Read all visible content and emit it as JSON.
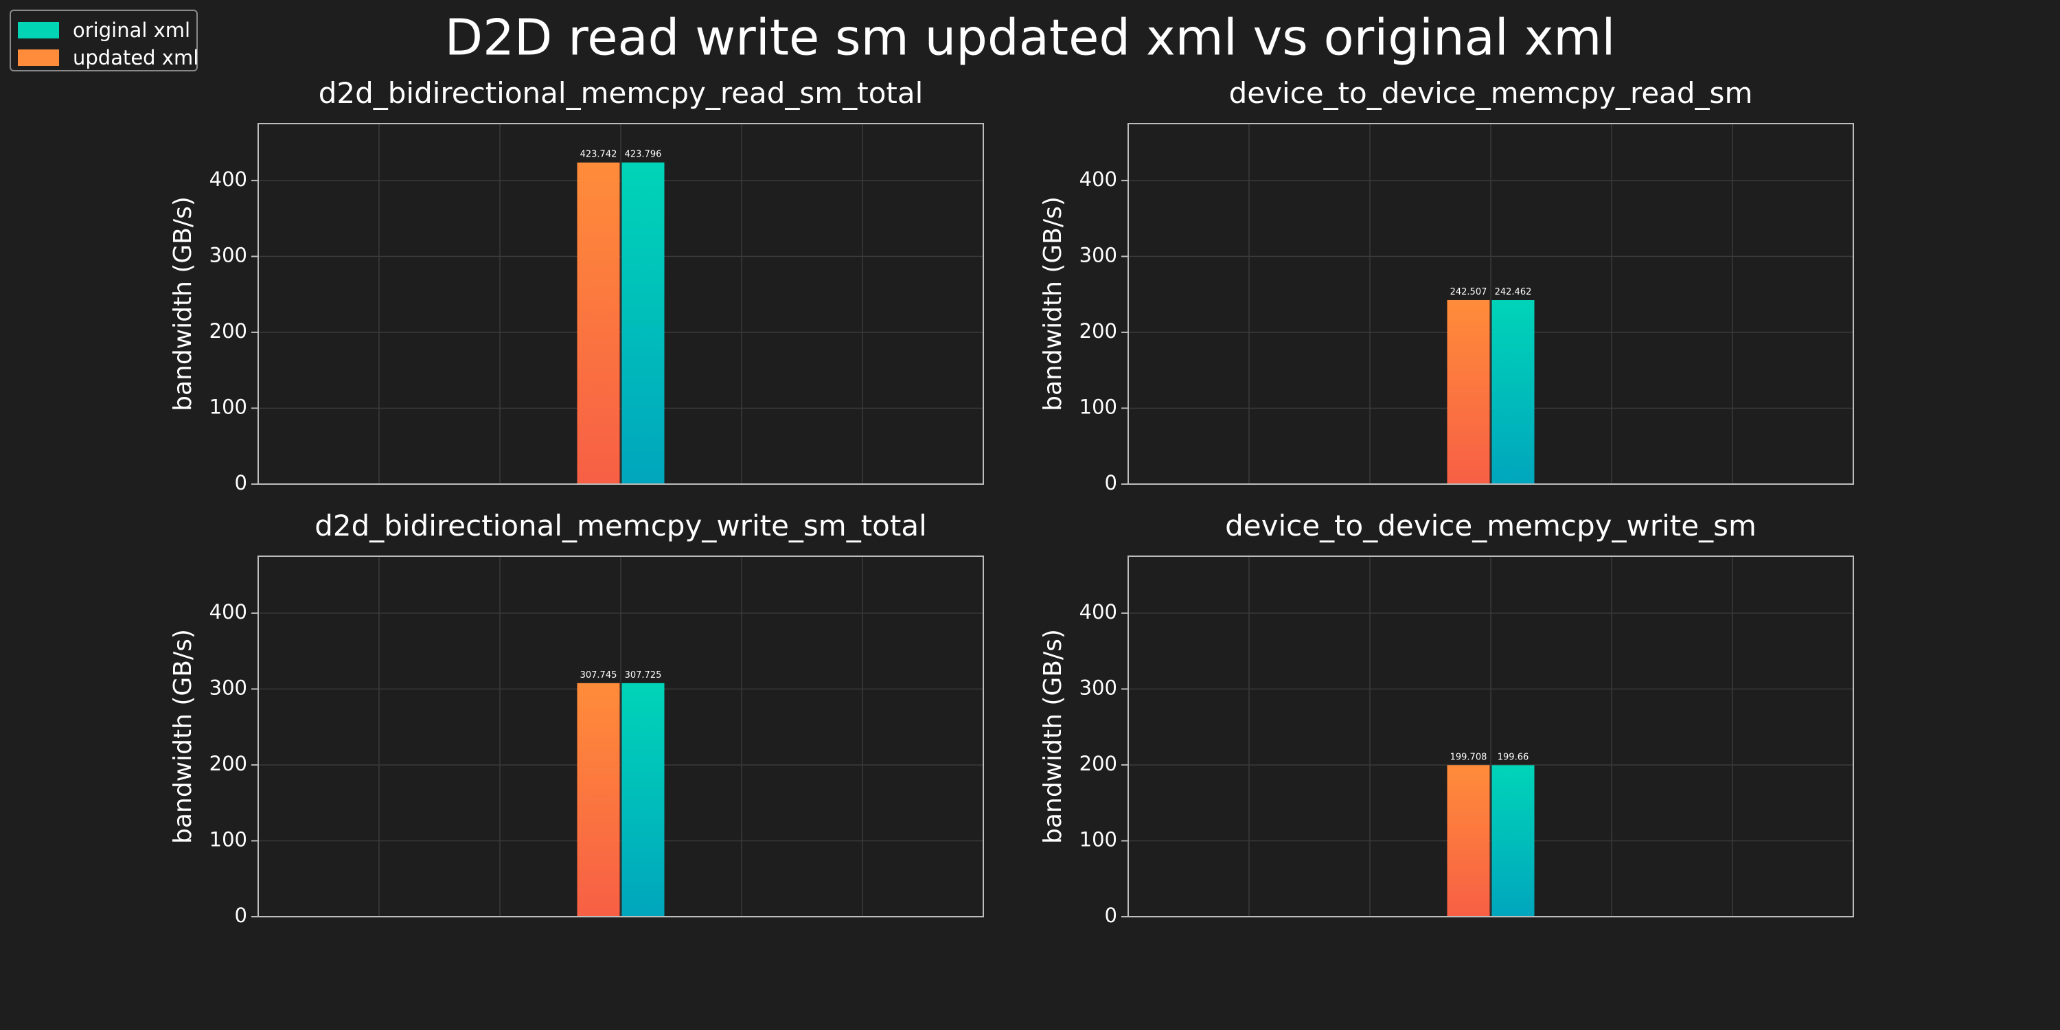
{
  "title": "D2D read write sm updated xml vs original xml",
  "legend": {
    "items": [
      {
        "label": "original xml",
        "color": "#00d4b4"
      },
      {
        "label": "updated xml",
        "color": "#ff8c3a"
      }
    ]
  },
  "colors": {
    "background": "#1e1e1e",
    "updated_top": "#ff8c3a",
    "updated_bottom": "#f75f45",
    "original_top": "#00d4b8",
    "original_bottom": "#00a6bd",
    "grid": "#3a3a3a",
    "axes": "#bdbdbd"
  },
  "chart_data": [
    {
      "type": "bar",
      "title": "d2d_bidirectional_memcpy_read_sm_total",
      "ylabel": "bandwidth (GB/s)",
      "ylim": [
        0,
        475
      ],
      "yticks": [
        0,
        100,
        200,
        300,
        400
      ],
      "grid": true,
      "series": [
        {
          "name": "updated xml",
          "values": [
            423.742
          ]
        },
        {
          "name": "original xml",
          "values": [
            423.796
          ]
        }
      ],
      "data_labels": [
        "423.742",
        "423.796"
      ]
    },
    {
      "type": "bar",
      "title": "device_to_device_memcpy_read_sm",
      "ylabel": "bandwidth (GB/s)",
      "ylim": [
        0,
        475
      ],
      "yticks": [
        0,
        100,
        200,
        300,
        400
      ],
      "grid": true,
      "series": [
        {
          "name": "updated xml",
          "values": [
            242.507
          ]
        },
        {
          "name": "original xml",
          "values": [
            242.462
          ]
        }
      ],
      "data_labels": [
        "242.507",
        "242.462"
      ]
    },
    {
      "type": "bar",
      "title": "d2d_bidirectional_memcpy_write_sm_total",
      "ylabel": "bandwidth (GB/s)",
      "ylim": [
        0,
        475
      ],
      "yticks": [
        0,
        100,
        200,
        300,
        400
      ],
      "grid": true,
      "series": [
        {
          "name": "updated xml",
          "values": [
            307.745
          ]
        },
        {
          "name": "original xml",
          "values": [
            307.725
          ]
        }
      ],
      "data_labels": [
        "307.745",
        "307.725"
      ]
    },
    {
      "type": "bar",
      "title": "device_to_device_memcpy_write_sm",
      "ylabel": "bandwidth (GB/s)",
      "ylim": [
        0,
        475
      ],
      "yticks": [
        0,
        100,
        200,
        300,
        400
      ],
      "grid": true,
      "series": [
        {
          "name": "updated xml",
          "values": [
            199.708
          ]
        },
        {
          "name": "original xml",
          "values": [
            199.66
          ]
        }
      ],
      "data_labels": [
        "199.708",
        "199.66"
      ]
    }
  ]
}
